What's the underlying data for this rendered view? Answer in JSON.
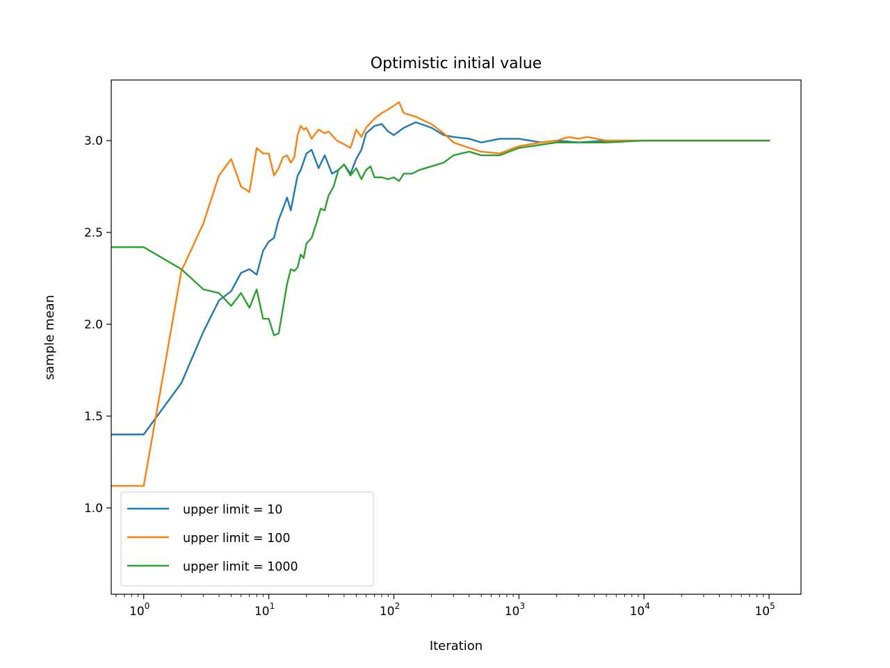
{
  "chart_data": {
    "type": "line",
    "title": "Optimistic initial value",
    "xlabel": "Iteration",
    "ylabel": "sample mean",
    "xscale": "log",
    "xlim": [
      0.55,
      180000
    ],
    "ylim": [
      0.53,
      3.33
    ],
    "grid": false,
    "legend_position": "lower-left",
    "x_ticks": [
      {
        "value": 1,
        "base": "10",
        "exp": "0"
      },
      {
        "value": 10,
        "base": "10",
        "exp": "1"
      },
      {
        "value": 100,
        "base": "10",
        "exp": "2"
      },
      {
        "value": 1000,
        "base": "10",
        "exp": "3"
      },
      {
        "value": 10000,
        "base": "10",
        "exp": "4"
      },
      {
        "value": 100000,
        "base": "10",
        "exp": "5"
      }
    ],
    "y_ticks": [
      {
        "value": 1.0,
        "label": "1.0"
      },
      {
        "value": 1.5,
        "label": "1.5"
      },
      {
        "value": 2.0,
        "label": "2.0"
      },
      {
        "value": 2.5,
        "label": "2.5"
      },
      {
        "value": 3.0,
        "label": "3.0"
      }
    ],
    "series": [
      {
        "name": "upper limit = 10",
        "color": "#1f77b4",
        "x": [
          0.55,
          1,
          2,
          3,
          4,
          5,
          6,
          7,
          8,
          9,
          10,
          11,
          12,
          13,
          14,
          15,
          16,
          17,
          18,
          20,
          22,
          25,
          28,
          32,
          36,
          40,
          45,
          50,
          55,
          60,
          70,
          80,
          90,
          100,
          120,
          150,
          200,
          250,
          300,
          400,
          500,
          700,
          1000,
          1500,
          2000,
          3000,
          5000,
          10000,
          30000,
          100000
        ],
        "y": [
          1.4,
          1.4,
          1.68,
          1.96,
          2.13,
          2.18,
          2.28,
          2.3,
          2.27,
          2.4,
          2.45,
          2.47,
          2.57,
          2.63,
          2.69,
          2.62,
          2.72,
          2.81,
          2.84,
          2.93,
          2.95,
          2.85,
          2.92,
          2.82,
          2.84,
          2.87,
          2.82,
          2.9,
          2.95,
          3.04,
          3.08,
          3.09,
          3.05,
          3.03,
          3.07,
          3.1,
          3.07,
          3.03,
          3.02,
          3.01,
          2.99,
          3.01,
          3.01,
          2.99,
          3.0,
          2.99,
          3.0,
          3.0,
          3.0,
          3.0
        ]
      },
      {
        "name": "upper limit = 100",
        "color": "#ff7f0e",
        "x": [
          0.55,
          1,
          2,
          3,
          4,
          5,
          6,
          7,
          8,
          9,
          10,
          11,
          12,
          13,
          14,
          15,
          16,
          17,
          18,
          19,
          20,
          22,
          25,
          28,
          30,
          35,
          40,
          45,
          50,
          55,
          60,
          70,
          80,
          90,
          100,
          110,
          120,
          150,
          200,
          250,
          300,
          400,
          500,
          700,
          1000,
          1500,
          2000,
          2500,
          3000,
          3500,
          5000,
          10000,
          30000,
          100000
        ],
        "y": [
          1.12,
          1.12,
          2.29,
          2.55,
          2.81,
          2.9,
          2.75,
          2.72,
          2.96,
          2.93,
          2.93,
          2.81,
          2.85,
          2.91,
          2.92,
          2.88,
          2.91,
          3.03,
          3.08,
          3.06,
          3.07,
          3.01,
          3.06,
          3.04,
          3.05,
          3.0,
          2.98,
          2.96,
          3.06,
          3.02,
          3.07,
          3.12,
          3.15,
          3.17,
          3.19,
          3.21,
          3.15,
          3.13,
          3.09,
          3.04,
          2.99,
          2.96,
          2.94,
          2.93,
          2.97,
          2.99,
          3.0,
          3.02,
          3.01,
          3.02,
          3.0,
          3.0,
          3.0,
          3.0
        ]
      },
      {
        "name": "upper limit = 1000",
        "color": "#2ca02c",
        "x": [
          0.55,
          1,
          2,
          3,
          4,
          5,
          6,
          7,
          8,
          9,
          10,
          11,
          12,
          13,
          14,
          15,
          16,
          17,
          18,
          19,
          20,
          22,
          24,
          26,
          28,
          30,
          33,
          36,
          40,
          45,
          50,
          55,
          60,
          65,
          70,
          80,
          90,
          100,
          110,
          120,
          140,
          160,
          200,
          250,
          300,
          400,
          500,
          700,
          1000,
          2000,
          5000,
          10000,
          30000,
          100000
        ],
        "y": [
          2.42,
          2.42,
          2.3,
          2.19,
          2.17,
          2.1,
          2.17,
          2.09,
          2.19,
          2.03,
          2.03,
          1.94,
          1.95,
          2.09,
          2.22,
          2.3,
          2.29,
          2.31,
          2.38,
          2.36,
          2.44,
          2.47,
          2.55,
          2.63,
          2.62,
          2.7,
          2.75,
          2.84,
          2.87,
          2.81,
          2.85,
          2.79,
          2.84,
          2.86,
          2.8,
          2.8,
          2.79,
          2.8,
          2.78,
          2.82,
          2.82,
          2.84,
          2.86,
          2.88,
          2.92,
          2.94,
          2.92,
          2.92,
          2.96,
          2.99,
          2.99,
          3.0,
          3.0,
          3.0
        ]
      }
    ]
  }
}
